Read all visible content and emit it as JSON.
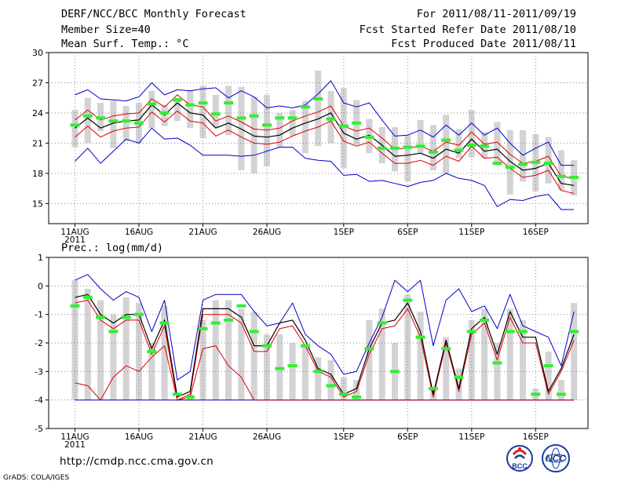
{
  "header": {
    "title": "DERF/NCC/BCC Monthly Forecast",
    "member_size": "Member Size=40",
    "variable": "Mean Surf. Temp.: °C",
    "period": "For 2011/08/11-2011/09/19",
    "started": "Fcst Started Refer Date 2011/08/10",
    "produced": "Fcst Produced Date 2011/08/11"
  },
  "footer": {
    "url": "http://cmdp.ncc.cma.gov.cn",
    "grads": "GrADS: COLA/IGES",
    "logo_left": "BCC",
    "logo_right": "NCC"
  },
  "colors": {
    "max_min": "#0000cc",
    "mean": "#000000",
    "spread": "#dd0000",
    "climate": "#33ee33",
    "bars": "#d3d3d5",
    "grid": "#888888"
  },
  "chart_data": [
    {
      "type": "line",
      "title": "Mean Surf. Temp.: °C",
      "ylim": [
        13,
        30
      ],
      "yticks": [
        15,
        18,
        21,
        24,
        27,
        30
      ],
      "x_labels": [
        {
          "day": 1,
          "label": "11AUG",
          "sub": "2011"
        },
        {
          "day": 6,
          "label": "16AUG"
        },
        {
          "day": 11,
          "label": "21AUG"
        },
        {
          "day": 16,
          "label": "26AUG"
        },
        {
          "day": 22,
          "label": "1SEP"
        },
        {
          "day": 27,
          "label": "6SEP"
        },
        {
          "day": 32,
          "label": "11SEP"
        },
        {
          "day": 37,
          "label": "16SEP"
        }
      ],
      "days": 40,
      "max": [
        25.8,
        26.3,
        25.4,
        25.3,
        25.2,
        25.6,
        27.0,
        25.8,
        26.3,
        26.2,
        26.4,
        26.5,
        25.5,
        26.2,
        25.6,
        24.5,
        24.7,
        24.5,
        24.8,
        25.9,
        27.2,
        25.0,
        24.6,
        25.0,
        23.3,
        21.7,
        21.8,
        22.3,
        21.6,
        22.8,
        21.8,
        23.0,
        21.8,
        22.5,
        21.0,
        19.8,
        20.5,
        21.1,
        18.8,
        18.8
      ],
      "mean": [
        22.5,
        23.5,
        22.5,
        23.0,
        23.2,
        23.3,
        24.8,
        23.8,
        25.0,
        24.0,
        23.8,
        22.5,
        23.0,
        22.4,
        21.7,
        21.6,
        21.8,
        22.5,
        23.0,
        23.4,
        24.0,
        22.0,
        21.4,
        21.8,
        20.8,
        19.7,
        19.8,
        20.0,
        19.5,
        20.4,
        20.0,
        21.4,
        20.2,
        20.4,
        19.2,
        18.3,
        18.5,
        19.0,
        17.0,
        16.8
      ],
      "spread_upper": [
        23.3,
        24.3,
        23.3,
        23.7,
        23.9,
        24.0,
        25.4,
        24.6,
        25.8,
        24.8,
        24.6,
        23.2,
        23.7,
        23.1,
        22.4,
        22.3,
        22.5,
        23.2,
        23.7,
        24.1,
        24.7,
        22.7,
        22.2,
        22.5,
        21.5,
        20.4,
        20.5,
        20.7,
        20.2,
        21.1,
        20.8,
        22.1,
        20.9,
        21.1,
        19.9,
        19.0,
        19.2,
        19.7,
        17.7,
        17.5
      ],
      "spread_lower": [
        21.6,
        22.7,
        21.6,
        22.2,
        22.5,
        22.6,
        24.1,
        23.1,
        24.2,
        23.2,
        23.0,
        21.7,
        22.3,
        21.6,
        21.0,
        20.9,
        21.1,
        21.7,
        22.2,
        22.6,
        23.2,
        21.2,
        20.7,
        21.1,
        20.0,
        19.0,
        19.0,
        19.3,
        18.8,
        19.7,
        19.2,
        20.7,
        19.5,
        19.6,
        18.5,
        17.6,
        17.8,
        18.3,
        16.3,
        16.0
      ],
      "min": [
        19.2,
        20.5,
        19.0,
        20.2,
        21.4,
        21.0,
        22.5,
        21.4,
        21.5,
        20.8,
        19.8,
        19.8,
        19.8,
        19.7,
        19.8,
        20.2,
        20.6,
        20.6,
        19.5,
        19.3,
        19.2,
        17.8,
        17.9,
        17.2,
        17.3,
        17.0,
        16.7,
        17.1,
        17.3,
        18.0,
        17.5,
        17.3,
        16.8,
        14.7,
        15.4,
        15.3,
        15.7,
        15.9,
        14.4,
        14.4
      ],
      "climate": [
        22.8,
        23.7,
        23.5,
        23.2,
        23.2,
        23.0,
        24.9,
        24.0,
        25.3,
        24.8,
        25.0,
        23.9,
        25.0,
        23.5,
        23.7,
        22.8,
        23.5,
        23.5,
        24.6,
        25.4,
        23.4,
        22.7,
        23.0,
        21.6,
        20.5,
        20.5,
        20.6,
        20.7,
        20.1,
        21.3,
        20.3,
        20.8,
        20.7,
        19.0,
        18.6,
        18.9,
        19.1,
        19.0,
        17.7,
        17.6
      ],
      "bars": [
        [
          20.6,
          24.3
        ],
        [
          21.0,
          25.5
        ],
        [
          22.2,
          25.0
        ],
        [
          20.5,
          25.2
        ],
        [
          21.2,
          24.7
        ],
        [
          21.0,
          25.0
        ],
        [
          22.5,
          26.2
        ],
        [
          22.7,
          24.8
        ],
        [
          23.2,
          25.5
        ],
        [
          22.5,
          26.3
        ],
        [
          21.5,
          26.7
        ],
        [
          22.6,
          25.8
        ],
        [
          21.8,
          26.7
        ],
        [
          18.3,
          26.6
        ],
        [
          18.0,
          25.6
        ],
        [
          18.7,
          25.8
        ],
        [
          20.6,
          24.0
        ],
        [
          21.7,
          24.3
        ],
        [
          20.0,
          25.2
        ],
        [
          20.7,
          28.2
        ],
        [
          21.0,
          26.2
        ],
        [
          18.5,
          26.5
        ],
        [
          20.8,
          25.3
        ],
        [
          20.0,
          23.4
        ],
        [
          19.0,
          22.6
        ],
        [
          18.2,
          22.6
        ],
        [
          17.2,
          21.8
        ],
        [
          20.0,
          23.3
        ],
        [
          18.3,
          22.8
        ],
        [
          18.0,
          23.8
        ],
        [
          19.5,
          22.4
        ],
        [
          19.6,
          24.3
        ],
        [
          19.5,
          22.1
        ],
        [
          18.8,
          23.1
        ],
        [
          15.9,
          22.3
        ],
        [
          17.2,
          22.3
        ],
        [
          16.2,
          21.9
        ],
        [
          17.0,
          21.6
        ],
        [
          16.3,
          20.3
        ],
        [
          15.8,
          19.3
        ]
      ]
    },
    {
      "type": "line",
      "title": "Prec.: log(mm/d)",
      "ylim": [
        -5,
        1
      ],
      "yticks": [
        -5,
        -4,
        -3,
        -2,
        -1,
        0,
        1
      ],
      "x_labels": [
        {
          "day": 1,
          "label": "11AUG",
          "sub": "2011"
        },
        {
          "day": 6,
          "label": "16AUG"
        },
        {
          "day": 11,
          "label": "21AUG"
        },
        {
          "day": 16,
          "label": "26AUG"
        },
        {
          "day": 22,
          "label": "1SEP"
        },
        {
          "day": 27,
          "label": "6SEP"
        },
        {
          "day": 32,
          "label": "11SEP"
        },
        {
          "day": 37,
          "label": "16SEP"
        }
      ],
      "days": 40,
      "bar_base": -4,
      "max": [
        0.2,
        0.4,
        -0.1,
        -0.5,
        -0.2,
        -0.4,
        -1.6,
        -0.5,
        -3.3,
        -3.0,
        -0.5,
        -0.3,
        -0.3,
        -0.3,
        -0.9,
        -1.4,
        -1.3,
        -0.6,
        -1.7,
        -2.1,
        -2.4,
        -3.1,
        -3.0,
        -2.0,
        -1.1,
        0.2,
        -0.2,
        0.2,
        -2.1,
        -0.5,
        -0.1,
        -0.9,
        -0.7,
        -1.5,
        -0.3,
        -1.4,
        -1.6,
        -1.8,
        -2.8,
        -0.9
      ],
      "mean": [
        -0.4,
        -0.3,
        -1.0,
        -1.3,
        -1.0,
        -1.0,
        -2.2,
        -1.2,
        -3.9,
        -3.7,
        -0.8,
        -0.8,
        -0.8,
        -1.1,
        -2.1,
        -2.1,
        -1.3,
        -1.2,
        -1.9,
        -2.9,
        -3.1,
        -3.8,
        -3.6,
        -2.2,
        -1.3,
        -1.2,
        -0.6,
        -1.6,
        -3.8,
        -1.9,
        -3.6,
        -1.5,
        -1.1,
        -2.4,
        -0.9,
        -1.8,
        -1.8,
        -3.7,
        -2.9,
        -1.7
      ],
      "spread_upper": [
        -0.6,
        -0.5,
        -1.2,
        -1.5,
        -1.2,
        -1.2,
        -2.4,
        -1.4,
        -4.0,
        -3.8,
        -1.0,
        -1.0,
        -1.0,
        -1.3,
        -2.3,
        -2.3,
        -1.5,
        -1.4,
        -2.1,
        -3.0,
        -3.2,
        -3.9,
        -3.7,
        -2.4,
        -1.5,
        -1.4,
        -0.8,
        -1.8,
        -3.9,
        -2.0,
        -3.7,
        -1.7,
        -1.3,
        -2.6,
        -1.1,
        -2.0,
        -2.0,
        -3.8,
        -3.0,
        -1.9
      ],
      "spread_lower": [
        -3.4,
        -3.5,
        -4.0,
        -3.2,
        -2.8,
        -3.0,
        -2.5,
        -2.1,
        -4.0,
        -3.9,
        -2.2,
        -2.1,
        -2.8,
        -3.2,
        -4.0,
        -4.0,
        -4.0,
        -4.0,
        -4.0,
        -4.0,
        -4.0,
        -4.0,
        -4.0,
        -4.0,
        -4.0,
        -4.0,
        -4.0,
        -4.0,
        -4.0,
        -4.0,
        -4.0,
        -4.0,
        -4.0,
        -4.0,
        -4.0,
        -4.0,
        -4.0,
        -4.0,
        -4.0,
        -4.0
      ],
      "min": [
        -4,
        -4,
        -4,
        -4,
        -4,
        -4,
        -4,
        -4,
        -4,
        -4,
        -4,
        -4,
        -4,
        -4,
        -4,
        -4,
        -4,
        -4,
        -4,
        -4,
        -4,
        -4,
        -4,
        -4,
        -4,
        -4,
        -4,
        -4,
        -4,
        -4,
        -4,
        -4,
        -4,
        -4,
        -4,
        -4,
        -4,
        -4,
        -4,
        -4
      ],
      "climate": [
        -0.7,
        -0.4,
        -1.1,
        -1.6,
        -1.1,
        -1.0,
        -2.3,
        -1.3,
        -3.8,
        -3.9,
        -1.5,
        -1.3,
        -1.2,
        -0.7,
        -1.6,
        -2.1,
        -2.9,
        -2.8,
        -2.1,
        -3.0,
        -3.5,
        -3.8,
        -3.9,
        -2.2,
        -1.3,
        -3.0,
        -0.5,
        -1.8,
        -3.6,
        -2.2,
        -3.2,
        -1.6,
        -1.2,
        -2.7,
        -1.6,
        -1.6,
        -3.8,
        -2.8,
        -3.8,
        -1.6
      ],
      "bars": [
        [
          -4,
          0.2
        ],
        [
          -4,
          -0.1
        ],
        [
          -4,
          -0.5
        ],
        [
          -4,
          -1.0
        ],
        [
          -4,
          -0.4
        ],
        [
          -4,
          -0.6
        ],
        [
          -4,
          -2.0
        ],
        [
          -4,
          -0.7
        ],
        [
          -4,
          -4.0
        ],
        [
          -4,
          -3.8
        ],
        [
          -4,
          -1.2
        ],
        [
          -4,
          -0.5
        ],
        [
          -4,
          -0.5
        ],
        [
          -4,
          -0.8
        ],
        [
          -4,
          -0.9
        ],
        [
          -4,
          -1.7
        ],
        [
          -4,
          -1.7
        ],
        [
          -4,
          -2.0
        ],
        [
          -4,
          -2.1
        ],
        [
          -4,
          -2.5
        ],
        [
          -4,
          -2.6
        ],
        [
          -4,
          -3.2
        ],
        [
          -4,
          -3.3
        ],
        [
          -4,
          -1.2
        ],
        [
          -4,
          -0.8
        ],
        [
          -4,
          -2.0
        ],
        [
          -4,
          -0.3
        ],
        [
          -4,
          -0.9
        ],
        [
          -4,
          -3.6
        ],
        [
          -4,
          -1.8
        ],
        [
          -4,
          -2.9
        ],
        [
          -4,
          -1.2
        ],
        [
          -4,
          -0.8
        ],
        [
          -4,
          -2.0
        ],
        [
          -4,
          -0.8
        ],
        [
          -4,
          -1.2
        ],
        [
          -4,
          -3.6
        ],
        [
          -4,
          -2.3
        ],
        [
          -4,
          -3.3
        ],
        [
          -4,
          -0.6
        ]
      ]
    }
  ]
}
